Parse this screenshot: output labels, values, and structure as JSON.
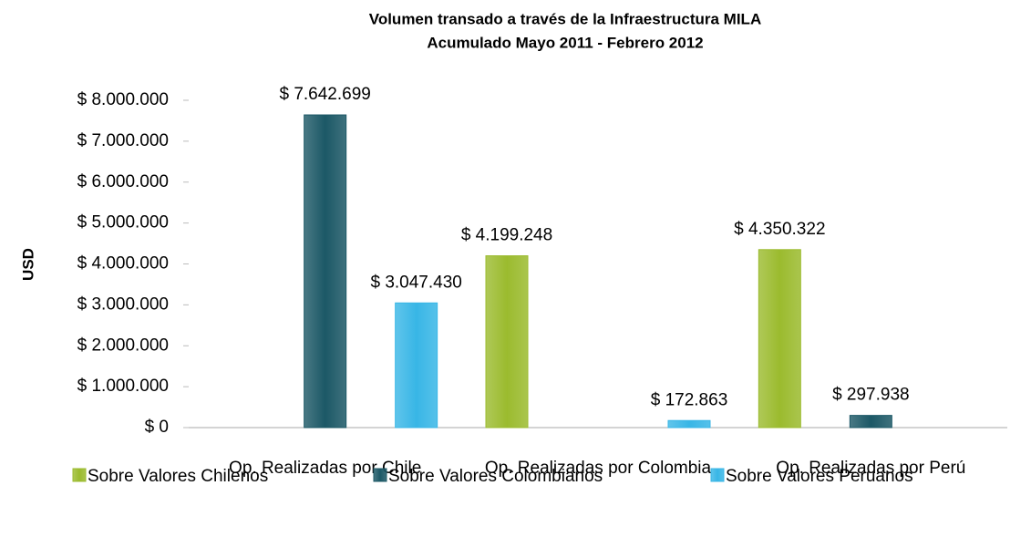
{
  "chart_data": {
    "type": "bar",
    "title": "Volumen transado a través de la Infraestructura MILA",
    "subtitle": "Acumulado Mayo 2011 - Febrero 2012",
    "y_label": "USD",
    "categories": [
      "Op. Realizadas por Chile",
      "Op. Realizadas por Colombia",
      "Op. Realizadas por Perú"
    ],
    "series": [
      {
        "name": "Sobre Valores Chilenos",
        "color": "#9bbb2e",
        "values": [
          null,
          4199248,
          4350322
        ],
        "value_labels": [
          null,
          "$ 4.199.248",
          "$ 4.350.322"
        ]
      },
      {
        "name": "Sobre Valores Colombianos",
        "color": "#1c5866",
        "values": [
          7642699,
          null,
          297938
        ],
        "value_labels": [
          "$ 7.642.699",
          null,
          "$ 297.938"
        ]
      },
      {
        "name": "Sobre Valores Peruanos",
        "color": "#38b6e6",
        "values": [
          3047430,
          172863,
          null
        ],
        "value_labels": [
          "$ 3.047.430",
          "$ 172.863",
          null
        ]
      }
    ],
    "ylim": [
      0,
      8000000
    ],
    "yticks": [
      {
        "value": 0,
        "label": "$ 0"
      },
      {
        "value": 1000000,
        "label": "$ 1.000.000"
      },
      {
        "value": 2000000,
        "label": "$ 2.000.000"
      },
      {
        "value": 3000000,
        "label": "$ 3.000.000"
      },
      {
        "value": 4000000,
        "label": "$ 4.000.000"
      },
      {
        "value": 5000000,
        "label": "$ 5.000.000"
      },
      {
        "value": 6000000,
        "label": "$ 6.000.000"
      },
      {
        "value": 7000000,
        "label": "$ 7.000.000"
      },
      {
        "value": 8000000,
        "label": "$ 8.000.000"
      }
    ],
    "grid": false
  }
}
